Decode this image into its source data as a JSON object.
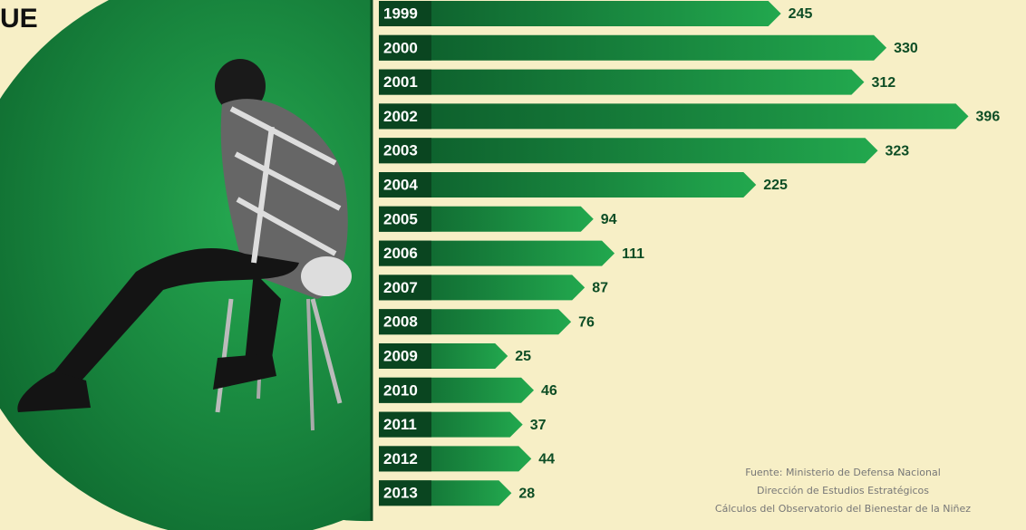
{
  "chart_data": {
    "type": "bar",
    "orientation": "horizontal",
    "title": "UE",
    "categories": [
      "1999",
      "2000",
      "2001",
      "2002",
      "2003",
      "2004",
      "2005",
      "2006",
      "2007",
      "2008",
      "2009",
      "2010",
      "2011",
      "2012",
      "2013"
    ],
    "values": [
      245,
      330,
      312,
      396,
      323,
      225,
      94,
      111,
      87,
      76,
      25,
      46,
      37,
      44,
      28
    ],
    "color": "#1f9a48",
    "source": [
      "Fuente: Ministerio de Defensa Nacional",
      "Dirección de Estudios Estratégicos",
      "Cálculos del Observatorio del Bienestar de la Niñez"
    ]
  }
}
